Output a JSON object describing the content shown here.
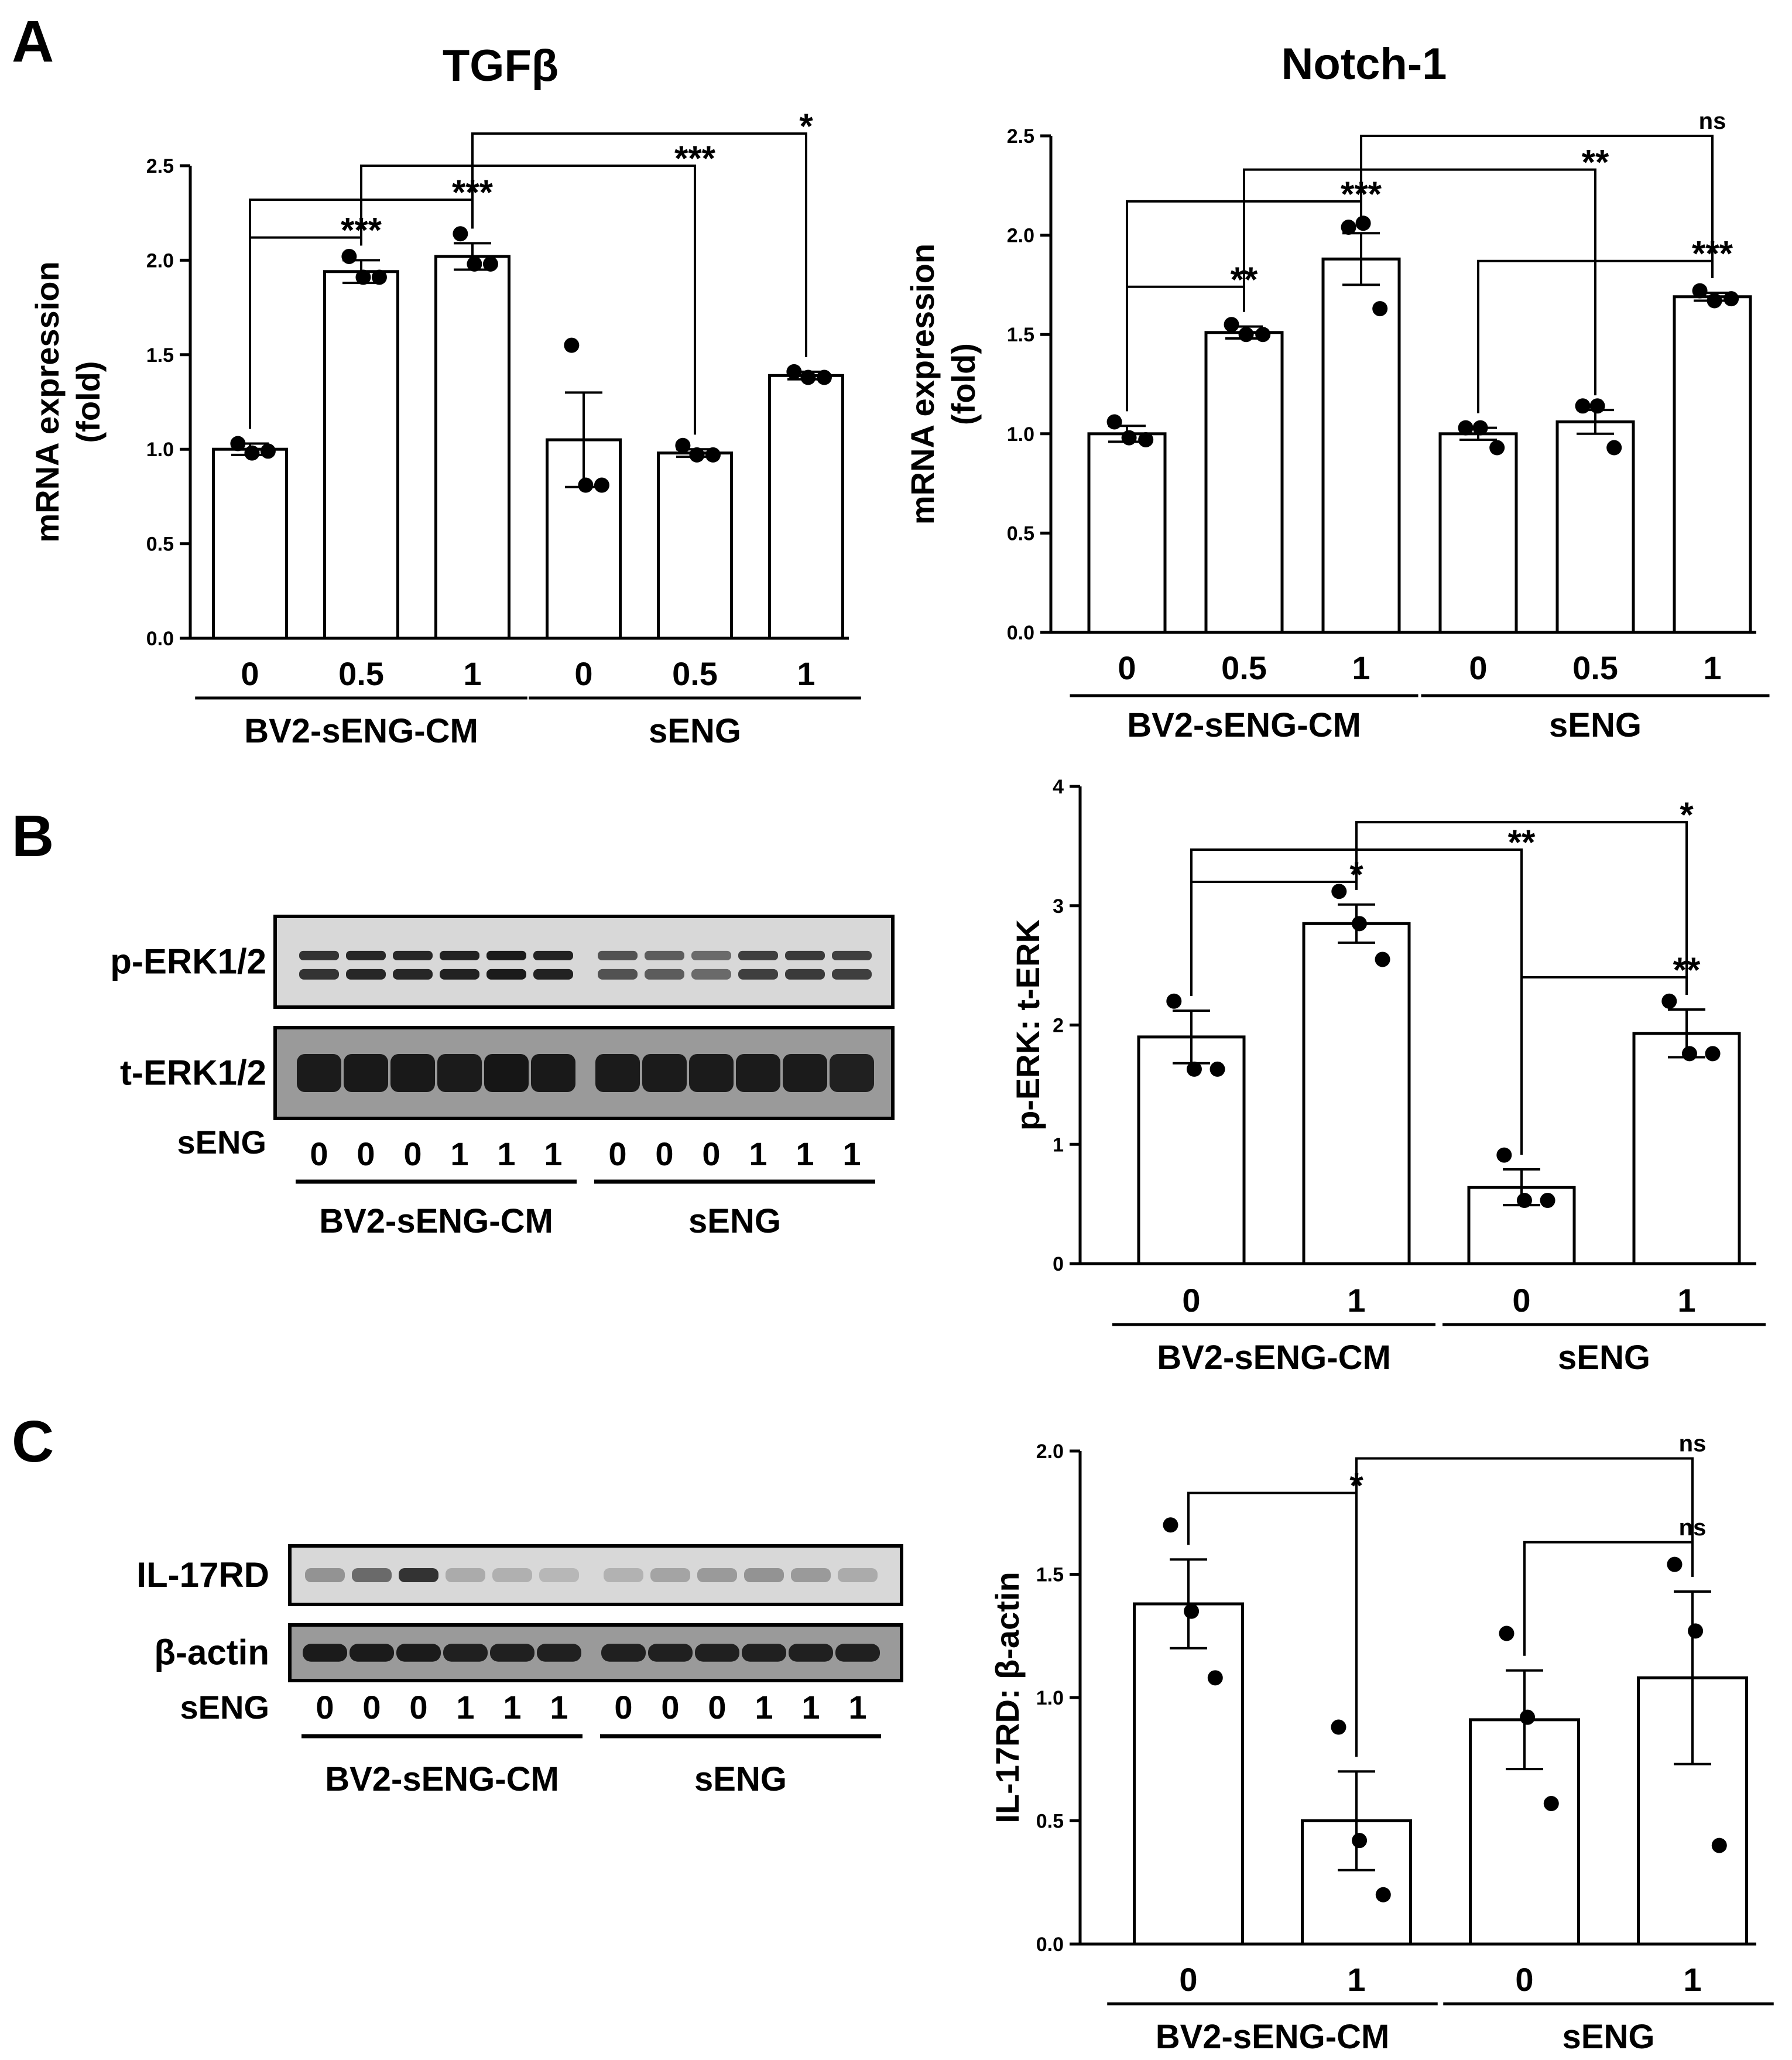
{
  "panels": [
    {
      "letter": "A"
    },
    {
      "letter": "B"
    },
    {
      "letter": "C"
    }
  ],
  "chart_data": [
    {
      "id": "tgfb",
      "type": "bar",
      "title": "TGFβ",
      "ylabel": "mRNA expression\n(fold)",
      "ylabel_lines": [
        "mRNA expression",
        "(fold)"
      ],
      "ylim": [
        0,
        2.5
      ],
      "yticks": [
        "0.0",
        "0.5",
        "1.0",
        "1.5",
        "2.0",
        "2.5"
      ],
      "categories": [
        "0",
        "0.5",
        "1",
        "0",
        "0.5",
        "1"
      ],
      "groups": [
        {
          "label": "BV2-sENG-CM",
          "members": [
            0,
            1,
            2
          ]
        },
        {
          "label": "sENG",
          "members": [
            3,
            4,
            5
          ]
        }
      ],
      "values": [
        1.0,
        1.94,
        2.02,
        1.05,
        0.98,
        1.39
      ],
      "sem": [
        0.03,
        0.06,
        0.07,
        0.25,
        0.02,
        0.02
      ],
      "points": [
        [
          1.03,
          0.98,
          0.99
        ],
        [
          2.02,
          1.91,
          1.91
        ],
        [
          2.14,
          1.98,
          1.98
        ],
        [
          1.55,
          0.81,
          0.81
        ],
        [
          1.02,
          0.97,
          0.97
        ],
        [
          1.41,
          1.38,
          1.38
        ]
      ],
      "comparisons": [
        {
          "a": 0,
          "b": 1,
          "label": "***",
          "y": 2.12
        },
        {
          "a": 0,
          "b": 2,
          "label": "***",
          "y": 2.32
        },
        {
          "a": 1,
          "b": 4,
          "label": "***",
          "y": 2.5
        },
        {
          "a": 2,
          "b": 5,
          "label": "*",
          "y": 2.67
        }
      ],
      "grid": false
    },
    {
      "id": "notch1",
      "type": "bar",
      "title": "Notch-1",
      "ylabel": "mRNA expression\n(fold)",
      "ylabel_lines": [
        "mRNA expression",
        "(fold)"
      ],
      "ylim": [
        0,
        2.5
      ],
      "yticks": [
        "0.0",
        "0.5",
        "1.0",
        "1.5",
        "2.0",
        "2.5"
      ],
      "categories": [
        "0",
        "0.5",
        "1",
        "0",
        "0.5",
        "1"
      ],
      "groups": [
        {
          "label": "BV2-sENG-CM",
          "members": [
            0,
            1,
            2
          ]
        },
        {
          "label": "sENG",
          "members": [
            3,
            4,
            5
          ]
        }
      ],
      "values": [
        1.0,
        1.51,
        1.88,
        1.0,
        1.06,
        1.69
      ],
      "sem": [
        0.04,
        0.03,
        0.13,
        0.03,
        0.06,
        0.02
      ],
      "points": [
        [
          1.06,
          0.98,
          0.97
        ],
        [
          1.55,
          1.5,
          1.5
        ],
        [
          2.04,
          2.06,
          1.63
        ],
        [
          1.03,
          1.03,
          0.93
        ],
        [
          1.14,
          1.14,
          0.93
        ],
        [
          1.72,
          1.67,
          1.68
        ]
      ],
      "comparisons": [
        {
          "a": 0,
          "b": 1,
          "label": "**",
          "y": 1.74
        },
        {
          "a": 0,
          "b": 2,
          "label": "***",
          "y": 2.17
        },
        {
          "a": 1,
          "b": 4,
          "label": "**",
          "y": 2.33
        },
        {
          "a": 3,
          "b": 5,
          "label": "***",
          "y": 1.87
        },
        {
          "a": 2,
          "b": 5,
          "label": "ns",
          "y": 2.5
        }
      ],
      "grid": false
    },
    {
      "id": "perk",
      "type": "bar",
      "title": "",
      "ylabel": "p-ERK: t-ERK",
      "ylabel_lines": [
        "p-ERK: t-ERK"
      ],
      "ylim": [
        0,
        4
      ],
      "yticks": [
        "0",
        "1",
        "2",
        "3",
        "4"
      ],
      "categories": [
        "0",
        "1",
        "0",
        "1"
      ],
      "groups": [
        {
          "label": "BV2-sENG-CM",
          "members": [
            0,
            1
          ]
        },
        {
          "label": "sENG",
          "members": [
            2,
            3
          ]
        }
      ],
      "values": [
        1.9,
        2.85,
        0.64,
        1.93
      ],
      "sem": [
        0.22,
        0.16,
        0.15,
        0.2
      ],
      "points": [
        [
          2.2,
          1.63,
          1.63
        ],
        [
          3.12,
          2.85,
          2.55
        ],
        [
          0.91,
          0.53,
          0.53
        ],
        [
          2.2,
          1.76,
          1.76
        ]
      ],
      "comparisons": [
        {
          "a": 0,
          "b": 1,
          "label": "*",
          "y": 3.2
        },
        {
          "a": 0,
          "b": 2,
          "label": "**",
          "y": 3.47
        },
        {
          "a": 1,
          "b": 3,
          "label": "*",
          "y": 3.7
        },
        {
          "a": 2,
          "b": 3,
          "label": "**",
          "y": 2.4
        }
      ],
      "grid": false
    },
    {
      "id": "il17rd",
      "type": "bar",
      "title": "",
      "ylabel": "IL-17RD: β-actin",
      "ylabel_lines": [
        "IL-17RD: β-actin"
      ],
      "ylim": [
        0,
        2.0
      ],
      "yticks": [
        "0.0",
        "0.5",
        "1.0",
        "1.5",
        "2.0"
      ],
      "categories": [
        "0",
        "1",
        "0",
        "1"
      ],
      "groups": [
        {
          "label": "BV2-sENG-CM",
          "members": [
            0,
            1
          ]
        },
        {
          "label": "sENG",
          "members": [
            2,
            3
          ]
        }
      ],
      "values": [
        1.38,
        0.5,
        0.91,
        1.08
      ],
      "sem": [
        0.18,
        0.2,
        0.2,
        0.35
      ],
      "points": [
        [
          1.7,
          1.35,
          1.08
        ],
        [
          0.88,
          0.42,
          0.2
        ],
        [
          1.26,
          0.92,
          0.57
        ],
        [
          1.54,
          1.27,
          0.4
        ]
      ],
      "comparisons": [
        {
          "a": 0,
          "b": 1,
          "label": "*",
          "y": 1.83
        },
        {
          "a": 2,
          "b": 3,
          "label": "ns",
          "y": 1.63
        },
        {
          "a": 1,
          "b": 3,
          "label": "ns",
          "y": 1.97
        }
      ],
      "grid": false
    }
  ],
  "blots": [
    {
      "id": "blot-b",
      "rows": [
        {
          "label": "p-ERK1/2",
          "kind": "doublet",
          "intensity": [
            0.85,
            0.9,
            0.9,
            0.92,
            0.95,
            0.92,
            0.72,
            0.68,
            0.62,
            0.8,
            0.82,
            0.8
          ]
        },
        {
          "label": "t-ERK1/2",
          "kind": "single",
          "intensity": [
            0.95,
            0.96,
            0.96,
            0.95,
            0.97,
            0.96,
            0.95,
            0.95,
            0.95,
            0.95,
            0.95,
            0.93
          ]
        }
      ],
      "lane_row_label": "sENG",
      "lanes": [
        "0",
        "0",
        "0",
        "1",
        "1",
        "1",
        "0",
        "0",
        "0",
        "1",
        "1",
        "1"
      ],
      "groups": [
        "BV2-sENG-CM",
        "sENG"
      ]
    },
    {
      "id": "blot-c",
      "rows": [
        {
          "label": "IL-17RD",
          "kind": "faint",
          "intensity": [
            0.45,
            0.62,
            0.85,
            0.35,
            0.33,
            0.3,
            0.32,
            0.38,
            0.42,
            0.45,
            0.42,
            0.35
          ]
        },
        {
          "label": "β-actin",
          "kind": "single",
          "intensity": [
            0.95,
            0.95,
            0.95,
            0.93,
            0.93,
            0.93,
            0.93,
            0.93,
            0.93,
            0.93,
            0.93,
            0.93
          ]
        }
      ],
      "lane_row_label": "sENG",
      "lanes": [
        "0",
        "0",
        "0",
        "1",
        "1",
        "1",
        "0",
        "0",
        "0",
        "1",
        "1",
        "1"
      ],
      "groups": [
        "BV2-sENG-CM",
        "sENG"
      ]
    }
  ]
}
